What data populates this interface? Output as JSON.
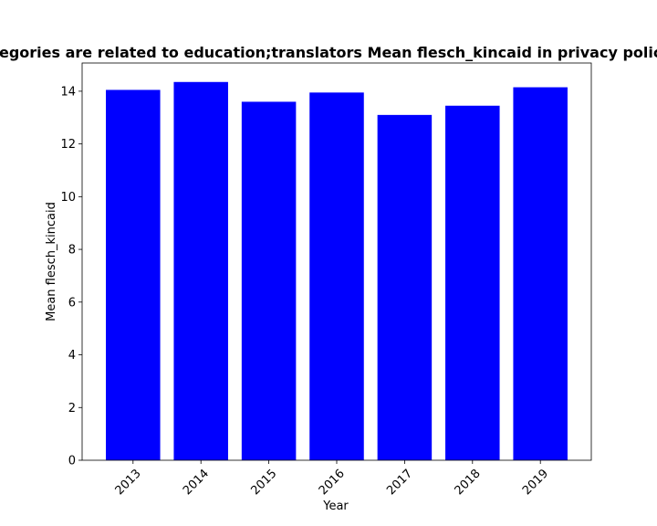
{
  "chart_data": {
    "type": "bar",
    "title": "Categories are related to education;translators Mean flesch_kincaid in privacy policies",
    "xlabel": "Year",
    "ylabel": "Mean flesch_kincaid",
    "categories": [
      "2013",
      "2014",
      "2015",
      "2016",
      "2017",
      "2018",
      "2019"
    ],
    "values": [
      14.05,
      14.35,
      13.6,
      13.95,
      13.1,
      13.45,
      14.15
    ],
    "ylim": [
      0,
      15.07
    ],
    "yticks": [
      0,
      2,
      4,
      6,
      8,
      10,
      12,
      14
    ],
    "bar_color": "#0000ff",
    "grid": false,
    "legend": "none",
    "xtick_rotation": "45"
  }
}
